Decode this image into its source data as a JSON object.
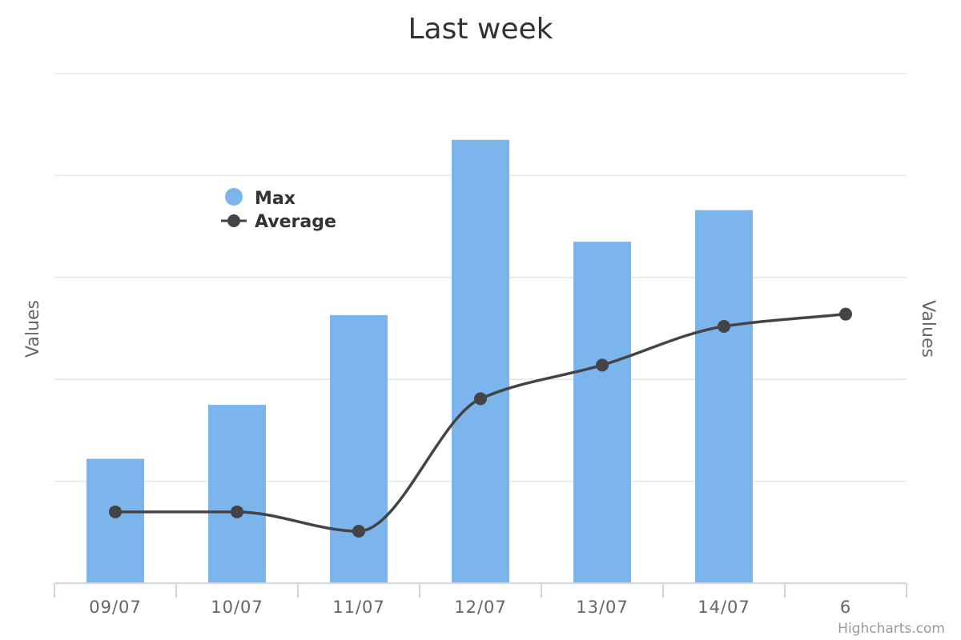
{
  "chart_data": {
    "type": "bar",
    "title": "Last week",
    "ylabel": "Values",
    "ylabel_right": "Values",
    "categories": [
      "09/07",
      "10/07",
      "11/07",
      "12/07",
      "13/07",
      "14/07",
      "6"
    ],
    "ylim": [
      0,
      5
    ],
    "grid": true,
    "legend": "top-left",
    "series": [
      {
        "name": "Max",
        "type": "bar",
        "color": "#7cb5ec",
        "values": [
          1.22,
          1.75,
          2.63,
          4.35,
          3.35,
          3.66,
          null
        ]
      },
      {
        "name": "Average",
        "type": "line",
        "color": "#434348",
        "values": [
          0.7,
          0.7,
          0.51,
          1.81,
          2.14,
          2.52,
          2.64
        ]
      }
    ]
  },
  "credits": "Highcharts.com"
}
